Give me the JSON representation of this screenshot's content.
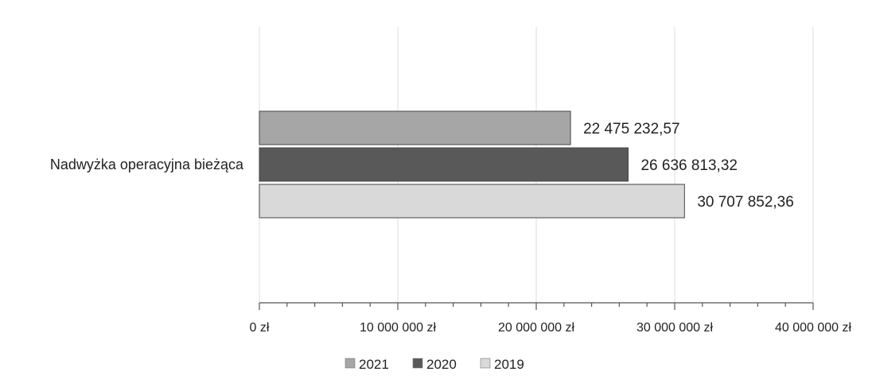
{
  "chart_data": {
    "type": "bar",
    "orientation": "horizontal",
    "categories": [
      "Nadwyżka operacyjna bieżąca"
    ],
    "series": [
      {
        "name": "2021",
        "values": [
          22475232.57
        ],
        "value_label": "22 475 232,57",
        "color": "#a6a6a6"
      },
      {
        "name": "2020",
        "values": [
          26636813.32
        ],
        "value_label": "26 636 813,32",
        "color": "#595959"
      },
      {
        "name": "2019",
        "values": [
          30707852.36
        ],
        "value_label": "30 707 852,36",
        "color": "#d9d9d9"
      }
    ],
    "xlim": [
      0,
      40000000
    ],
    "x_ticks": [
      {
        "value": 0,
        "label": "0 zł"
      },
      {
        "value": 10000000,
        "label": "10 000 000 zł"
      },
      {
        "value": 20000000,
        "label": "20 000 000 zł"
      },
      {
        "value": 30000000,
        "label": "30 000 000 zł"
      },
      {
        "value": 40000000,
        "label": "40 000 000 zł"
      }
    ],
    "x_minor_step": 2000000,
    "grid": true,
    "legend_position": "bottom"
  }
}
